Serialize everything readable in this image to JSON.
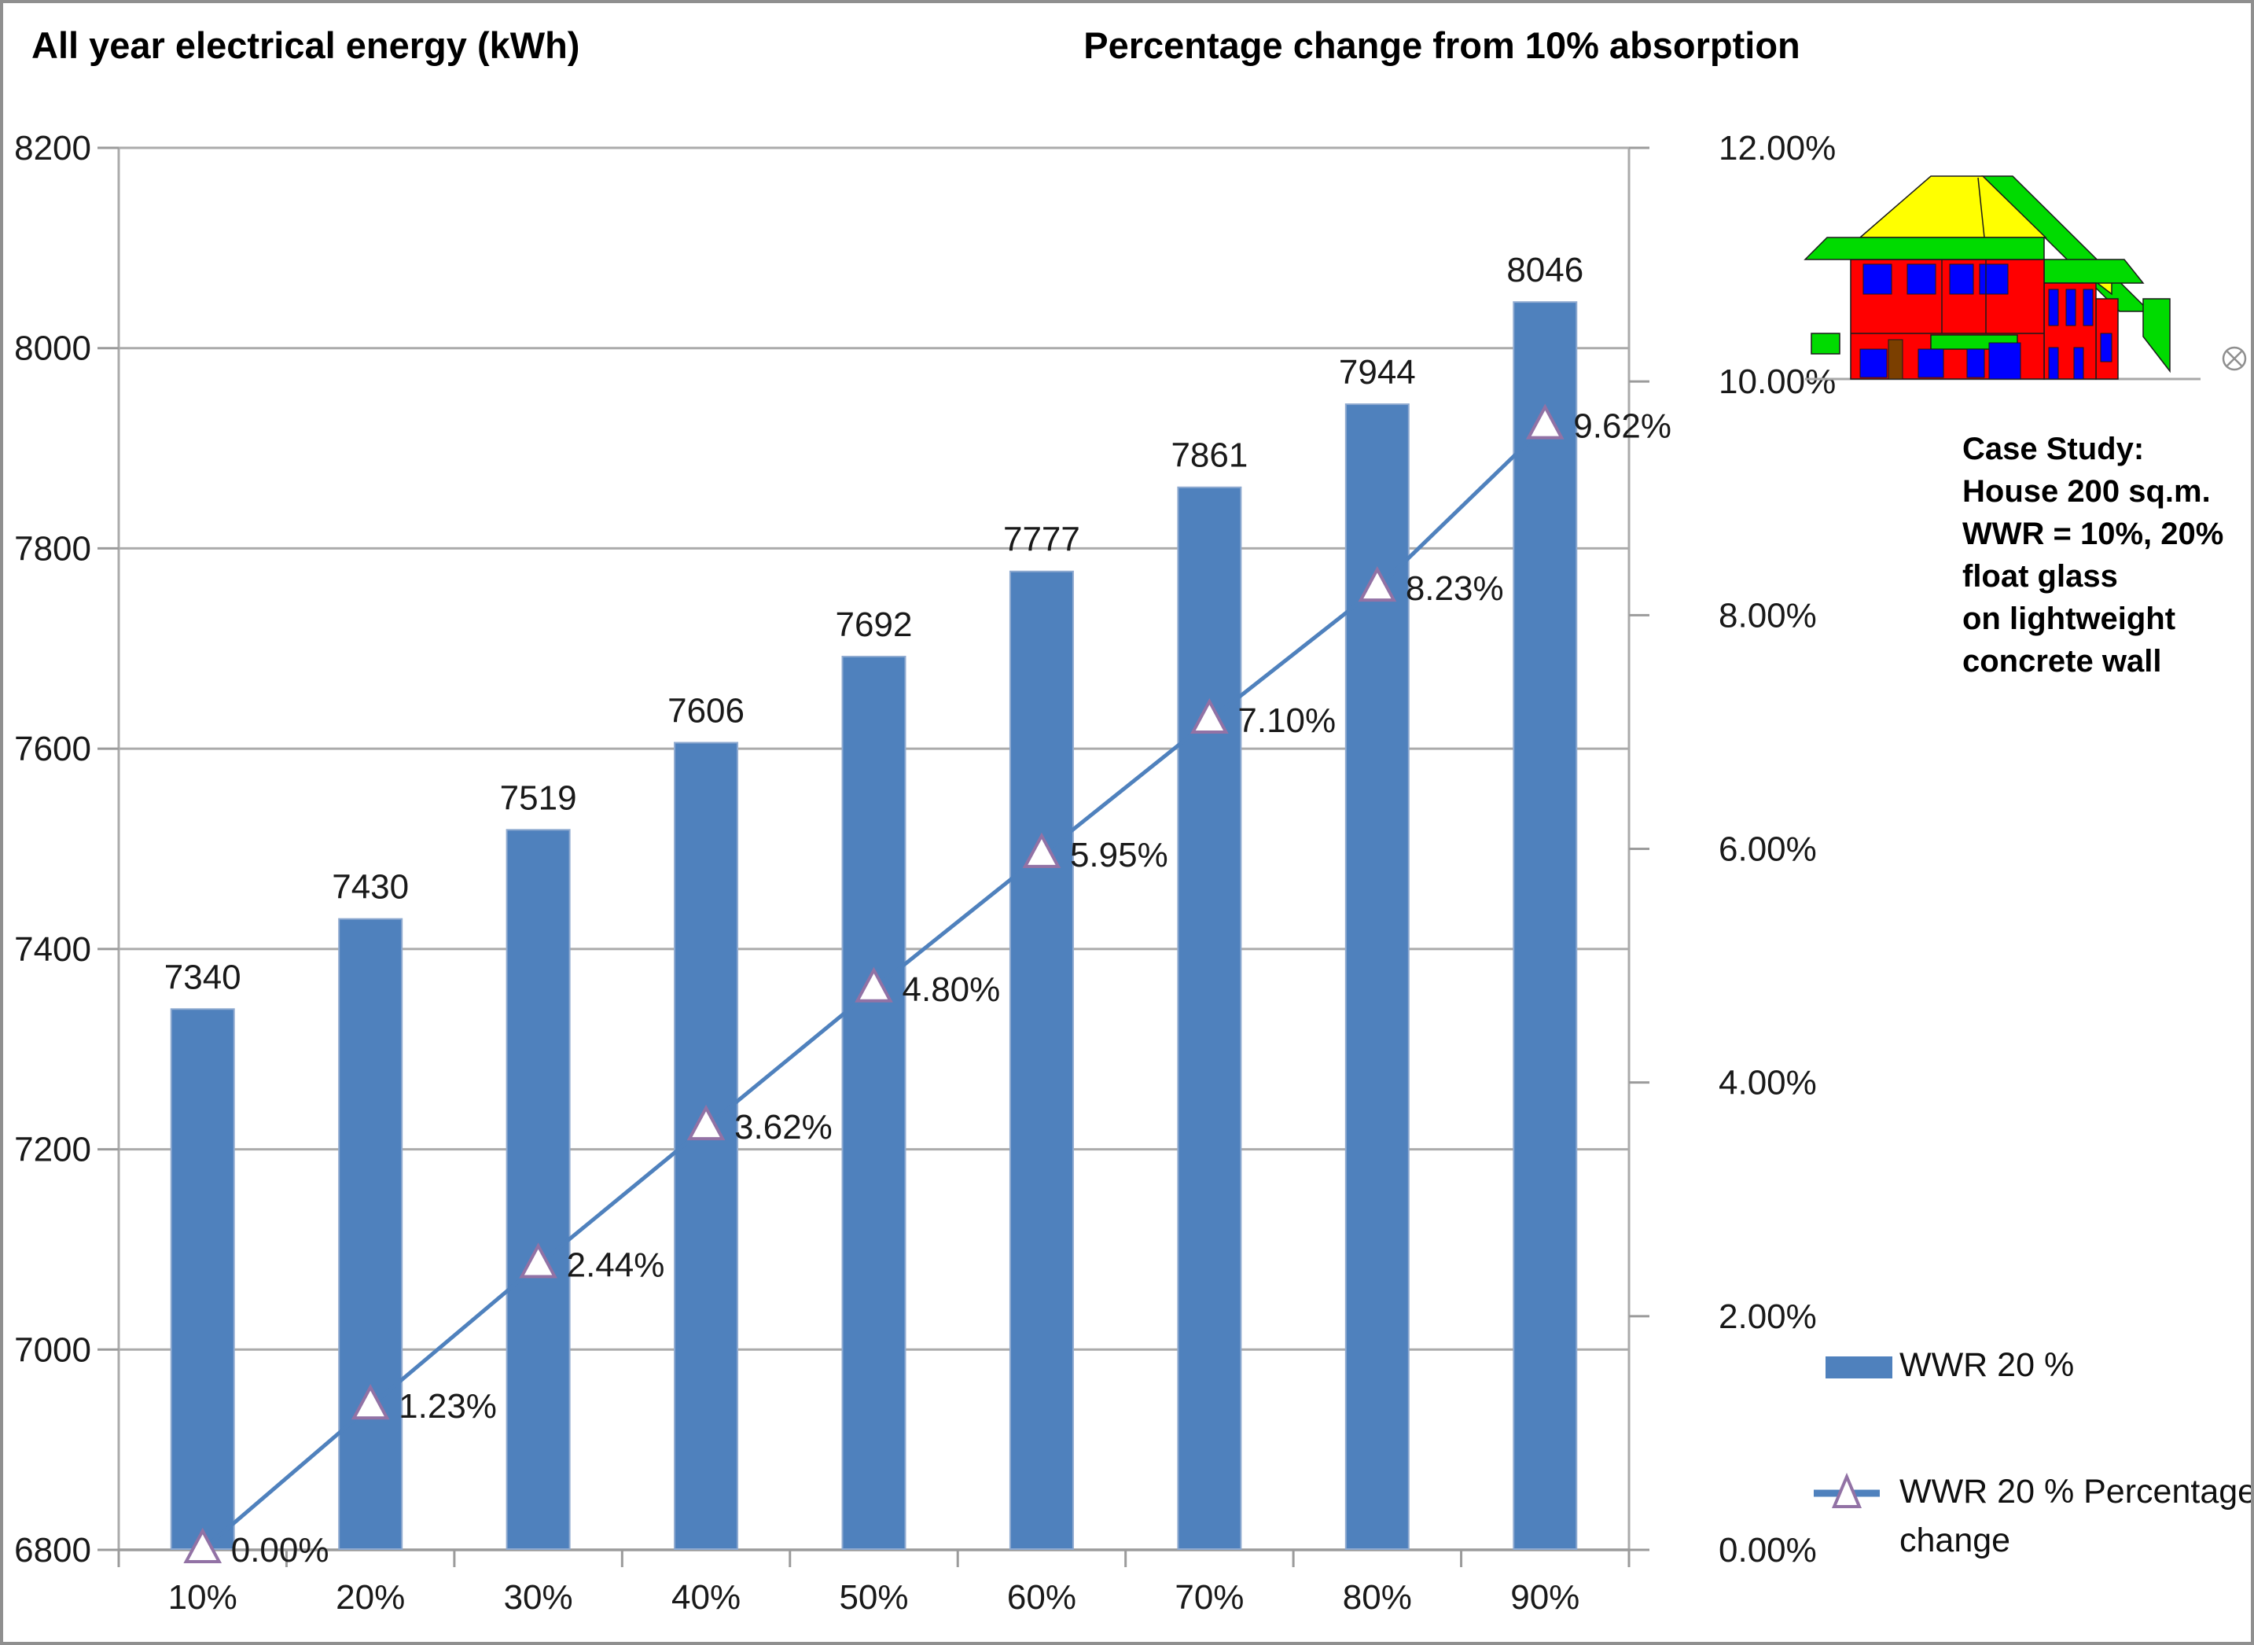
{
  "titles": {
    "left": "All year electrical energy (kWh)",
    "right": "Percentage change from 10% absorption"
  },
  "chart_data": {
    "type": "bar",
    "subtype": "combo-bar-line-dual-axis",
    "categories": [
      "10%",
      "20%",
      "30%",
      "40%",
      "50%",
      "60%",
      "70%",
      "80%",
      "90%"
    ],
    "series": [
      {
        "name": "WWR 20 %",
        "chart": "bar",
        "axis": "left",
        "values": [
          7340,
          7430,
          7519,
          7606,
          7692,
          7777,
          7861,
          7944,
          8046
        ],
        "data_labels": [
          "7340",
          "7430",
          "7519",
          "7606",
          "7692",
          "7777",
          "7861",
          "7944",
          "8046"
        ],
        "color": "#4F81BD"
      },
      {
        "name": "WWR 20 % Percentage change",
        "chart": "line",
        "axis": "right",
        "values": [
          0.0,
          1.23,
          2.44,
          3.62,
          4.8,
          5.95,
          7.1,
          8.23,
          9.62
        ],
        "data_labels": [
          "0.00%",
          "1.23%",
          "2.44%",
          "3.62%",
          "4.80%",
          "5.95%",
          "7.10%",
          "8.23%",
          "9.62%"
        ],
        "line_color": "#4F81BD",
        "marker": "triangle-up",
        "marker_fill": "#FFFFFF",
        "marker_stroke": "#9272A5"
      }
    ],
    "left_axis": {
      "title": "All year electrical energy (kWh)",
      "min": 6800,
      "max": 8200,
      "tick_values": [
        6800,
        7000,
        7200,
        7400,
        7600,
        7800,
        8000,
        8200
      ],
      "tick_labels": [
        "6800",
        "7000",
        "7200",
        "7400",
        "7600",
        "7800",
        "8000",
        "8200"
      ]
    },
    "right_axis": {
      "title": "Percentage change from 10% absorption",
      "min": 0,
      "max": 12,
      "tick_values": [
        0,
        2,
        4,
        6,
        8,
        10,
        12
      ],
      "tick_labels": [
        "0.00%",
        "2.00%",
        "4.00%",
        "6.00%",
        "8.00%",
        "10.00%",
        "12.00%"
      ]
    },
    "grid": true,
    "legend_position": "right-bottom"
  },
  "legend": {
    "items": [
      {
        "label": "WWR 20 %",
        "swatch": "bar"
      },
      {
        "label": "WWR 20 % Percentage change",
        "swatch": "line-triangle"
      }
    ]
  },
  "annotation": {
    "text": "Case Study:\nHouse 200 sq.m.\nWWR = 10%, 20%\nfloat glass\non lightweight\nconcrete wall"
  },
  "house_icon": {
    "wall": "#FF0000",
    "roof": "#FFFF00",
    "trim": "#00DB00",
    "window": "#0000FF",
    "door": "#7B3F00",
    "ground": "#A8A8A8"
  },
  "colors": {
    "grid": "#ABABAB",
    "axis": "#9B9B9B",
    "text": "#191919",
    "bar_edge": "#8FAAD0"
  }
}
